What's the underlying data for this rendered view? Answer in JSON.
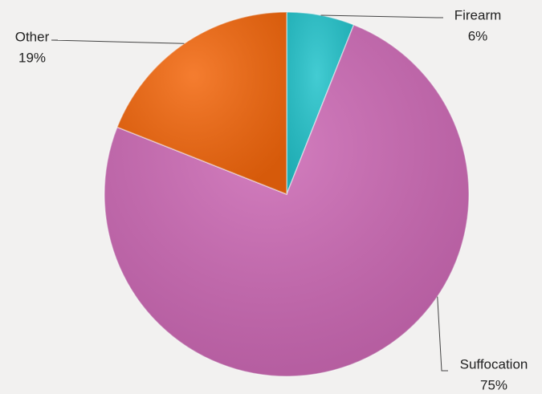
{
  "chart_data": {
    "type": "pie",
    "categories": [
      "Firearm",
      "Suffocation",
      "Other"
    ],
    "values": [
      6,
      75,
      19
    ],
    "value_labels": [
      "6%",
      "75%",
      "19%"
    ],
    "colors": [
      "#22c3cb",
      "#cc68b4",
      "#f3660b"
    ]
  }
}
